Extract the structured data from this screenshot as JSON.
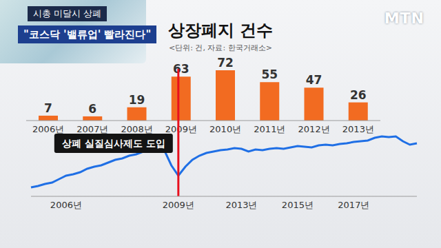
{
  "header": {
    "tag": "시총 미달시 상폐",
    "headline": "\"코스닥 '밸류업' 빨라진다\"",
    "logo": "MTN"
  },
  "chart_data": [
    {
      "type": "bar",
      "title": "상장폐지 건수",
      "subtitle": "<단위: 건, 자료: 한국거래소>",
      "categories": [
        "2006년",
        "2007년",
        "2008년",
        "2009년",
        "2010년",
        "2011년",
        "2012년",
        "2013년"
      ],
      "values": [
        7,
        6,
        19,
        63,
        72,
        55,
        47,
        26
      ],
      "color": "#f26b21",
      "ylim": [
        0,
        72
      ],
      "data_labels": true,
      "tick_labels": "x"
    },
    {
      "type": "line",
      "categories": [
        null,
        null,
        null,
        null,
        null,
        "2006년",
        null,
        null,
        null,
        null,
        null,
        null,
        null,
        null,
        null,
        null,
        null,
        null,
        null,
        null,
        null,
        "2009년",
        null,
        null,
        null,
        null,
        null,
        null,
        null,
        null,
        "2013년",
        null,
        null,
        null,
        null,
        null,
        null,
        null,
        "2015년",
        null,
        null,
        null,
        null,
        null,
        null,
        null,
        "2017년",
        null,
        null,
        null,
        null,
        null,
        null,
        null,
        null,
        null
      ],
      "values": [
        28,
        30,
        33,
        35,
        40,
        45,
        47,
        50,
        55,
        58,
        60,
        64,
        68,
        70,
        74,
        76,
        80,
        84,
        88,
        82,
        60,
        45,
        58,
        68,
        74,
        78,
        80,
        82,
        83,
        85,
        84,
        80,
        83,
        82,
        84,
        85,
        84,
        86,
        88,
        87,
        86,
        89,
        90,
        89,
        91,
        92,
        94,
        95,
        96,
        100,
        102,
        101,
        102,
        95,
        90,
        92
      ],
      "color": "#1f6fe5",
      "ylim": [
        15,
        200
      ],
      "tick_labels": "x",
      "annotations": [
        {
          "text": "상폐 실질심사제도 도입",
          "x": "2009년"
        }
      ]
    }
  ]
}
